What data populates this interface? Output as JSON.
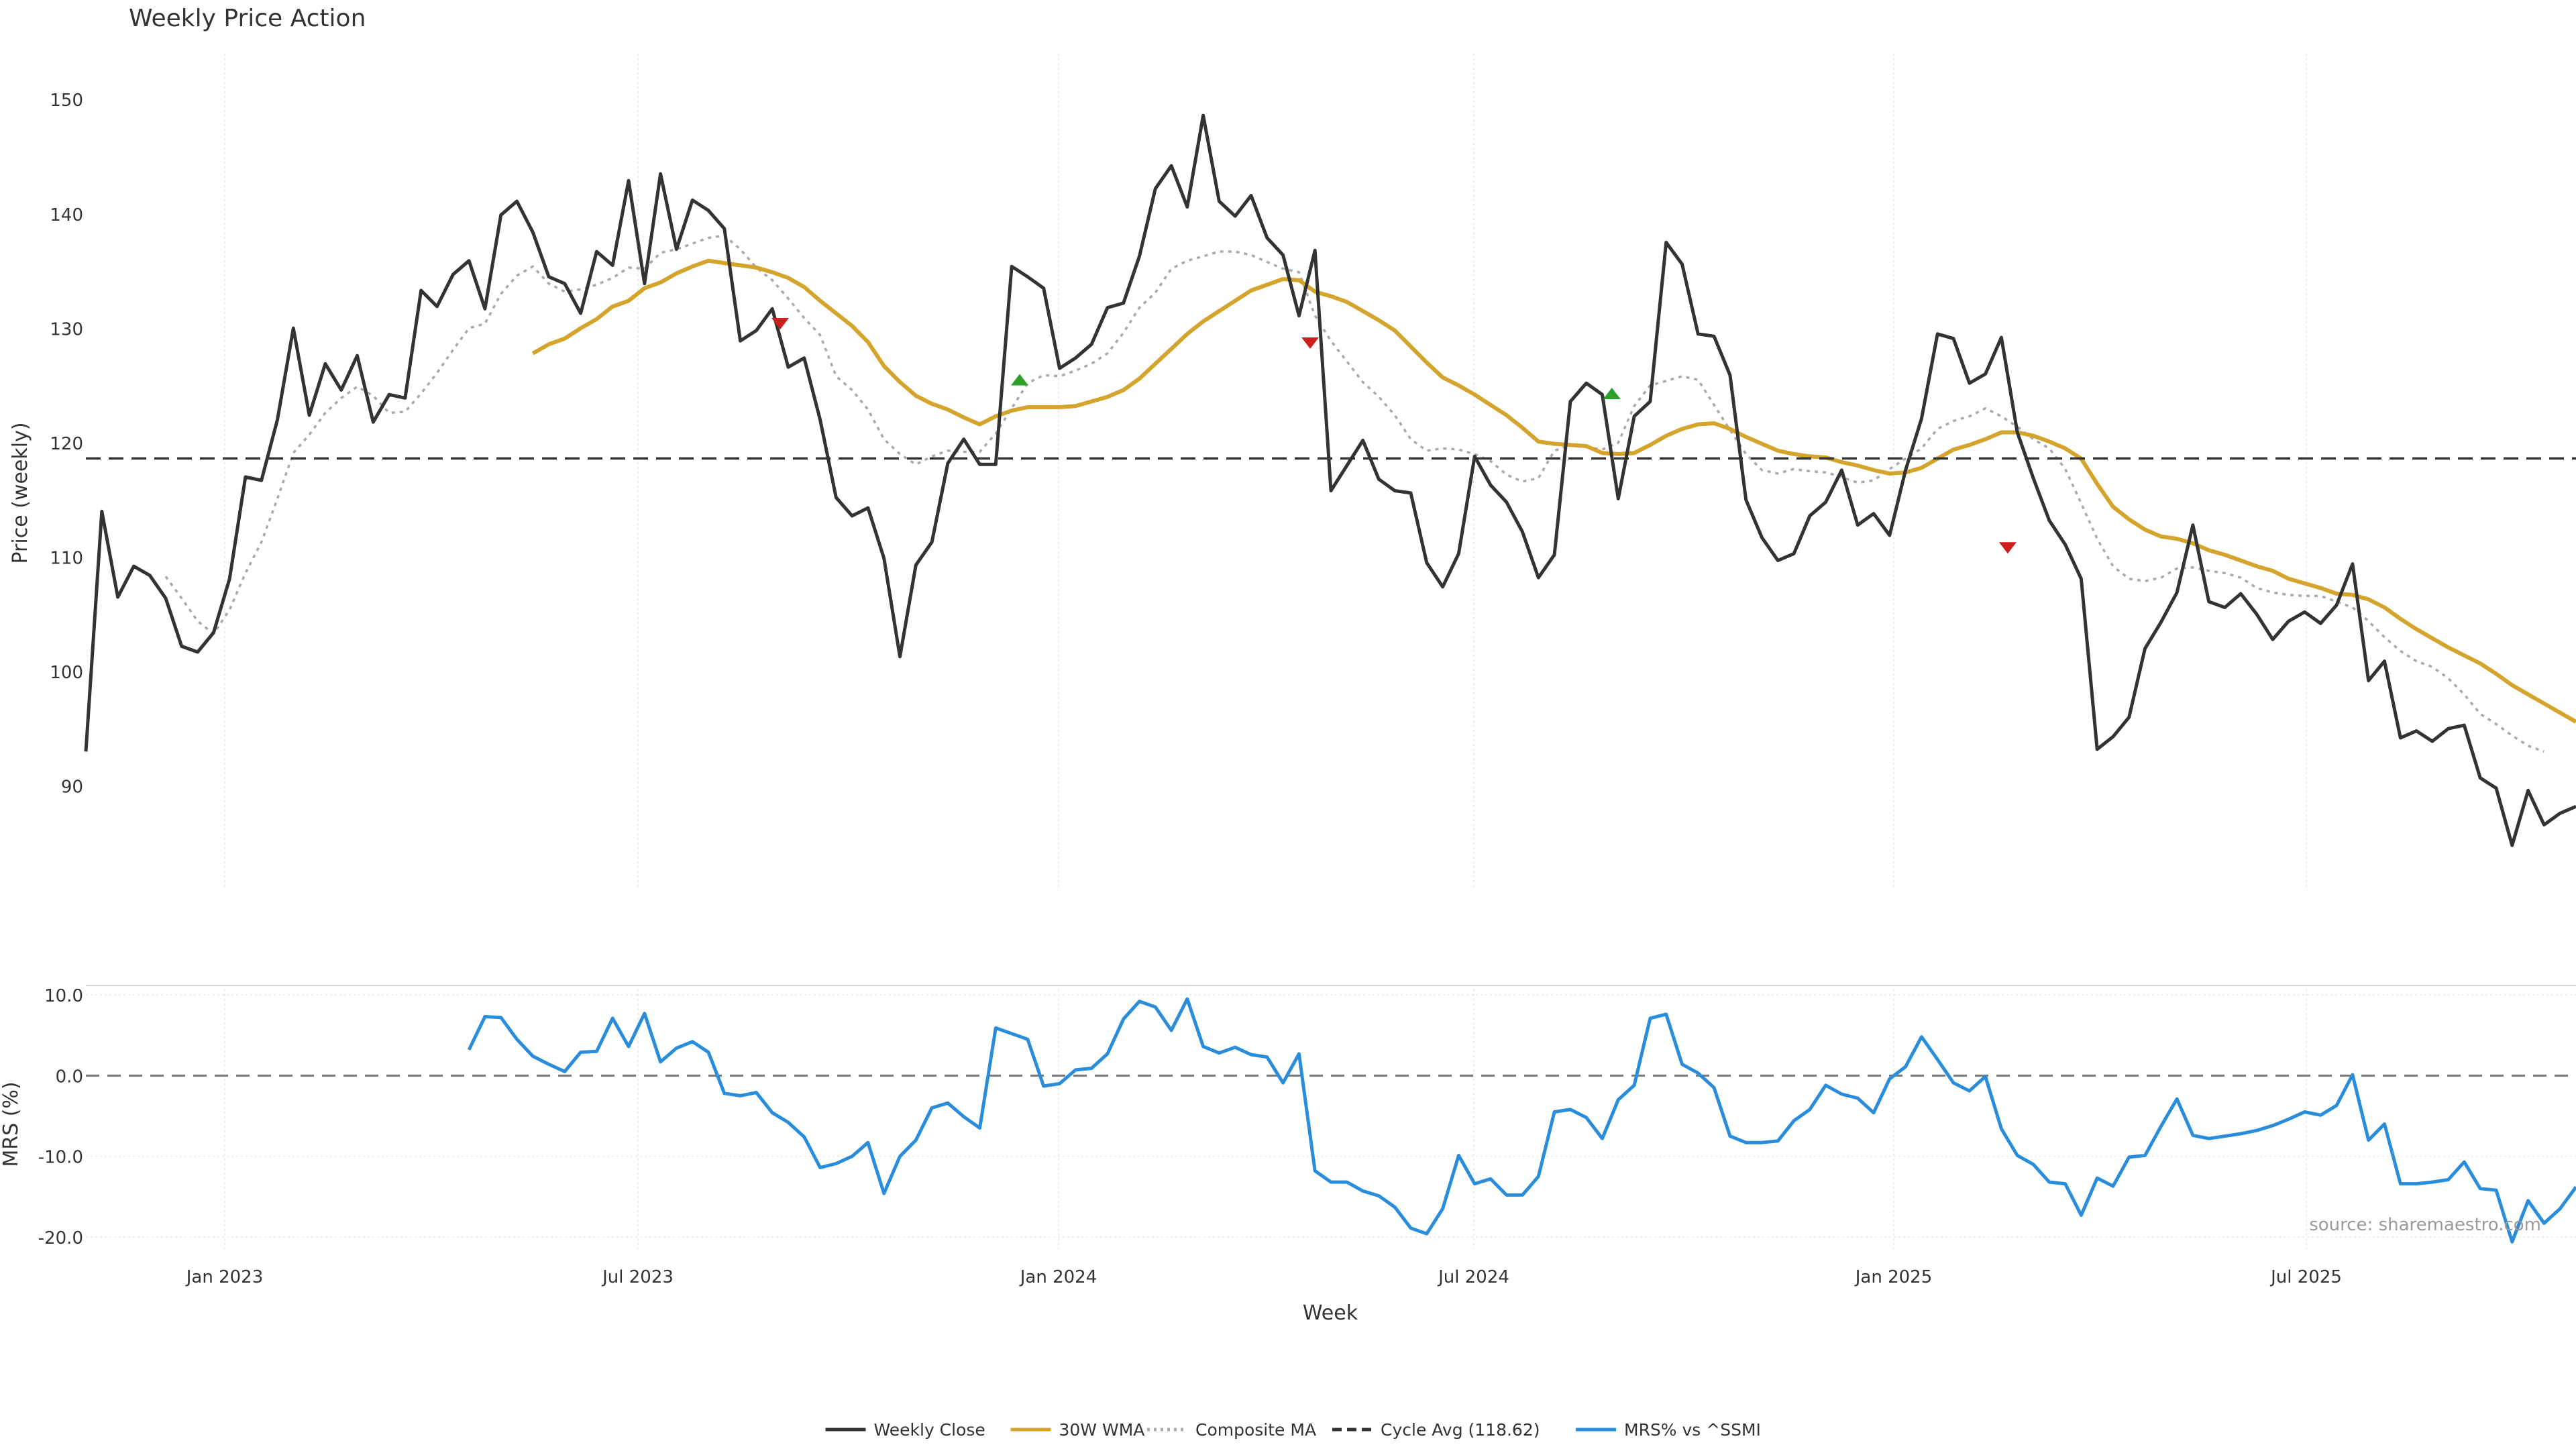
{
  "chart_data": [
    {
      "type": "line",
      "title": "Weekly Price Action",
      "ylabel": "Price (weekly)",
      "xlabel": "",
      "x_tick_labels": [
        "Jan 2023",
        "Jul 2023",
        "Jan 2024",
        "Jul 2024",
        "Jan 2025",
        "Jul 2025"
      ],
      "y_ticks": [
        90,
        100,
        110,
        120,
        130,
        140,
        150
      ],
      "ylim": [
        81,
        154
      ],
      "grid": true,
      "cycle_avg": 118.62,
      "series": [
        {
          "name": "Weekly Close",
          "color": "#333333",
          "style": "solid",
          "values": [
            93,
            114,
            106.5,
            109.2,
            108.4,
            106.4,
            102.2,
            101.7,
            103.4,
            108.1,
            117,
            116.7,
            122,
            130,
            122.4,
            126.9,
            124.6,
            127.6,
            121.8,
            124.2,
            123.9,
            133.3,
            131.9,
            134.7,
            135.9,
            131.7,
            139.9,
            141.1,
            138.4,
            134.5,
            133.9,
            131.3,
            136.7,
            135.5,
            142.9,
            133.9,
            143.5,
            136.9,
            141.2,
            140.3,
            138.7,
            128.9,
            129.8,
            131.7,
            126.6,
            127.4,
            122,
            115.2,
            113.6,
            114.3,
            109.9,
            101.3,
            109.3,
            111.3,
            118.2,
            120.3,
            118.1,
            118.1,
            135.4,
            134.5,
            133.5,
            126.5,
            127.4,
            128.6,
            131.8,
            132.2,
            136.3,
            142.2,
            144.2,
            140.6,
            148.6,
            141.1,
            139.8,
            141.6,
            137.9,
            136.4,
            131.1,
            136.8,
            115.8,
            118,
            120.2,
            116.8,
            115.8,
            115.6,
            109.5,
            107.4,
            110.3,
            118.8,
            116.3,
            114.8,
            112.2,
            108.2,
            110.2,
            123.6,
            125.2,
            124.2,
            115.1,
            122.3,
            123.6,
            137.5,
            135.6,
            129.5,
            129.3,
            125.9,
            115,
            111.7,
            109.7,
            110.3,
            113.6,
            114.8,
            117.6,
            112.8,
            113.8,
            111.9,
            117.6,
            122.1,
            129.5,
            129.1,
            125.2,
            126,
            129.2,
            120.9,
            116.9,
            113.2,
            111.1,
            108.1,
            93.2,
            94.3,
            96,
            102,
            104.3,
            106.9,
            112.8,
            106.1,
            105.6,
            106.8,
            105,
            102.8,
            104.4,
            105.2,
            104.2,
            105.8,
            109.4,
            99.2,
            100.9,
            94.2,
            94.8,
            93.9,
            95,
            95.3,
            90.7,
            89.8,
            84.8,
            89.6,
            86.6,
            87.6,
            88.2
          ]
        },
        {
          "name": "30W WMA",
          "color": "#d4a42c",
          "style": "solid",
          "values": [
            null,
            null,
            null,
            null,
            null,
            null,
            null,
            null,
            null,
            null,
            null,
            null,
            null,
            null,
            null,
            null,
            null,
            null,
            null,
            null,
            null,
            null,
            null,
            null,
            null,
            null,
            null,
            null,
            127.8,
            128.6,
            129.1,
            130,
            130.8,
            131.9,
            132.4,
            133.5,
            134,
            134.8,
            135.4,
            135.9,
            135.7,
            135.5,
            135.3,
            134.9,
            134.4,
            133.6,
            132.4,
            131.3,
            130.2,
            128.8,
            126.7,
            125.3,
            124.1,
            123.4,
            122.9,
            122.2,
            121.6,
            122.3,
            122.8,
            123.1,
            123.1,
            123.1,
            123.2,
            123.6,
            124,
            124.6,
            125.6,
            126.9,
            128.2,
            129.5,
            130.6,
            131.5,
            132.4,
            133.3,
            133.8,
            134.3,
            134.2,
            133.2,
            132.8,
            132.3,
            131.5,
            130.7,
            129.8,
            128.4,
            127,
            125.7,
            125,
            124.2,
            123.3,
            122.4,
            121.3,
            120.1,
            119.9,
            119.8,
            119.7,
            119.1,
            119,
            119.1,
            119.8,
            120.6,
            121.2,
            121.6,
            121.7,
            121.2,
            120.5,
            119.9,
            119.3,
            119,
            118.8,
            118.7,
            118.3,
            118,
            117.6,
            117.3,
            117.4,
            117.8,
            118.6,
            119.4,
            119.8,
            120.3,
            120.9,
            120.9,
            120.6,
            120.1,
            119.5,
            118.6,
            116.4,
            114.4,
            113.3,
            112.4,
            111.8,
            111.6,
            111.2,
            110.6,
            110.2,
            109.7,
            109.2,
            108.8,
            108.1,
            107.7,
            107.3,
            106.8,
            106.7,
            106.3,
            105.6,
            104.6,
            103.7,
            102.9,
            102.1,
            101.4,
            100.7,
            99.8,
            98.8,
            98,
            97.2,
            96.4,
            95.6
          ]
        },
        {
          "name": "Composite MA",
          "color": "#aaaaaa",
          "style": "dotted",
          "values": [
            null,
            null,
            null,
            null,
            null,
            108.3,
            106.4,
            104.4,
            103.3,
            105.4,
            108.6,
            111.3,
            115.1,
            119.1,
            120.7,
            122.6,
            123.9,
            124.9,
            124.1,
            122.6,
            122.7,
            124.3,
            126.1,
            128.1,
            130,
            130.4,
            133,
            134.6,
            135.4,
            133.9,
            133.2,
            133.4,
            133.8,
            134.4,
            135.3,
            135.2,
            136.6,
            136.9,
            137.4,
            137.9,
            138.1,
            136.9,
            135.3,
            134.2,
            132.6,
            130.9,
            129.4,
            125.8,
            124.6,
            122.9,
            120.3,
            119,
            118.1,
            118.8,
            119.3,
            119.2,
            119.2,
            120.8,
            123,
            125.2,
            125.9,
            125.8,
            126.3,
            126.9,
            127.8,
            129.6,
            131.8,
            133.1,
            135.2,
            135.9,
            136.3,
            136.7,
            136.7,
            136.4,
            135.8,
            135.2,
            134.9,
            131.1,
            128.9,
            127.1,
            125.3,
            124,
            122.4,
            120.3,
            119.3,
            119.5,
            119.4,
            119,
            118.4,
            117.2,
            116.6,
            116.9,
            119.3,
            119.8,
            119.6,
            119.4,
            120,
            123.2,
            125,
            125.4,
            125.8,
            125.5,
            123.3,
            121.1,
            119,
            117.6,
            117.3,
            117.7,
            117.5,
            117.4,
            117,
            116.5,
            116.7,
            117.7,
            118.6,
            119.5,
            121.2,
            121.9,
            122.3,
            123,
            122.3,
            121.4,
            120.3,
            119.5,
            117.7,
            114.7,
            111.6,
            109.2,
            108.1,
            107.9,
            108.2,
            109,
            109.1,
            108.8,
            108.6,
            108.2,
            107.3,
            106.9,
            106.7,
            106.6,
            106.6,
            106.1,
            105.6,
            104.4,
            103,
            101.8,
            100.9,
            100.4,
            99.4,
            98,
            96.3,
            95.4,
            94.4,
            93.5,
            93
          ]
        }
      ],
      "signals": [
        {
          "x": 43.5,
          "y": 130.4,
          "kind": "sell"
        },
        {
          "x": 58.5,
          "y": 125.5,
          "kind": "buy"
        },
        {
          "x": 76.7,
          "y": 128.7,
          "kind": "sell"
        },
        {
          "x": 95.6,
          "y": 124.3,
          "kind": "buy"
        },
        {
          "x": 120.4,
          "y": 110.8,
          "kind": "sell"
        }
      ]
    },
    {
      "type": "line",
      "title": "",
      "ylabel": "MRS (%)",
      "xlabel": "Week",
      "x_tick_labels": [
        "Jan 2023",
        "Jul 2023",
        "Jan 2024",
        "Jul 2024",
        "Jan 2025",
        "Jul 2025"
      ],
      "y_tick_labels": [
        "10.0",
        "0.0",
        "-10.0",
        "-20.0"
      ],
      "y_ticks": [
        10,
        0,
        -10,
        -20
      ],
      "ylim": [
        -21.5,
        11.5
      ],
      "grid": true,
      "zero_line": true,
      "series": [
        {
          "name": "MRS% vs ^SSMI",
          "color": "#2a8ddc",
          "style": "solid",
          "values": [
            null,
            null,
            null,
            null,
            null,
            null,
            null,
            null,
            null,
            null,
            null,
            null,
            null,
            null,
            null,
            null,
            null,
            null,
            null,
            null,
            null,
            null,
            null,
            null,
            3.2,
            7.3,
            7.2,
            4.5,
            2.4,
            1.4,
            0.5,
            2.9,
            3,
            7.1,
            3.6,
            7.7,
            1.7,
            3.4,
            4.2,
            2.9,
            -2.2,
            -2.5,
            -2.1,
            -4.6,
            -5.8,
            -7.6,
            -11.4,
            -10.9,
            -10,
            -8.3,
            -14.6,
            -10,
            -8,
            -4,
            -3.4,
            -5.1,
            -6.5,
            5.9,
            5.2,
            4.5,
            -1.3,
            -1,
            0.7,
            0.9,
            2.7,
            7,
            9.2,
            8.5,
            5.6,
            9.5,
            3.6,
            2.8,
            3.5,
            2.6,
            2.3,
            -0.9,
            2.7,
            -11.8,
            -13.2,
            -13.2,
            -14.3,
            -14.9,
            -16.3,
            -18.9,
            -19.6,
            -16.5,
            -9.9,
            -13.4,
            -12.8,
            -14.8,
            -14.8,
            -12.5,
            -4.5,
            -4.2,
            -5.2,
            -7.8,
            -3,
            -1.2,
            7.1,
            7.6,
            1.4,
            0.3,
            -1.5,
            -7.5,
            -8.3,
            -8.3,
            -8.1,
            -5.6,
            -4.2,
            -1.2,
            -2.3,
            -2.8,
            -4.6,
            -0.4,
            1.1,
            4.8,
            2,
            -0.9,
            -1.9,
            -0.1,
            -6.6,
            -9.9,
            -11,
            -13.2,
            -13.4,
            -17.3,
            -12.7,
            -13.7,
            -10.1,
            -9.9,
            -6.3,
            -2.9,
            -7.4,
            -7.8,
            -7.5,
            -7.2,
            -6.8,
            -6.2,
            -5.4,
            -4.5,
            -4.9,
            -3.7,
            0.1,
            -8,
            -6,
            -13.4,
            -13.4,
            -13.2,
            -12.9,
            -10.7,
            -14,
            -14.2,
            -20.6,
            -15.5,
            -18.3,
            -16.5,
            -13.8
          ]
        }
      ],
      "annotation": "source: sharemaestro.com"
    }
  ],
  "legend": {
    "placement": "bottom-center",
    "items": [
      {
        "label": "Weekly Close",
        "color": "#333333",
        "style": "solid"
      },
      {
        "label": "30W WMA",
        "color": "#d4a42c",
        "style": "solid"
      },
      {
        "label": "Composite MA",
        "color": "#aaaaaa",
        "style": "dotted"
      },
      {
        "label": "Cycle Avg (118.62)",
        "color": "#333333",
        "style": "dashed"
      },
      {
        "label": "MRS% vs ^SSMI",
        "color": "#2a8ddc",
        "style": "solid"
      }
    ]
  }
}
